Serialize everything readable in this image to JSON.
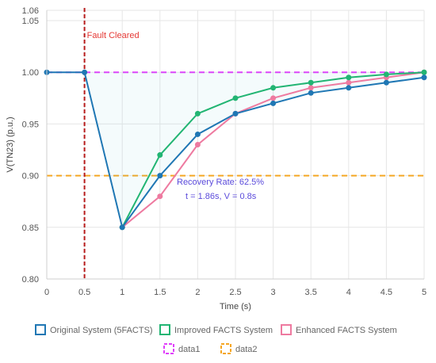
{
  "chart_data": {
    "type": "line",
    "xlabel": "Time (s)",
    "ylabel": "V(TN23) (p.u.)",
    "xlim": [
      0,
      5
    ],
    "ylim": [
      0.8,
      1.06
    ],
    "x_ticks": [
      "0",
      "0.5",
      "1",
      "1.5",
      "2",
      "2.5",
      "3",
      "3.5",
      "4",
      "4.5",
      "5"
    ],
    "y_ticks": [
      "0.80",
      "0.85",
      "0.90",
      "0.95",
      "1.00",
      "1.05",
      "1.06"
    ],
    "grid": true,
    "series": [
      {
        "name": "Original System (5FACTS)",
        "color": "#1f77b4",
        "x": [
          0,
          0.5,
          1,
          1.5,
          2,
          2.5,
          3,
          3.5,
          4,
          4.5,
          5
        ],
        "y": [
          1.0,
          1.0,
          0.85,
          0.9,
          0.94,
          0.96,
          0.97,
          0.98,
          0.985,
          0.99,
          0.995
        ]
      },
      {
        "name": "Improved FACTS System",
        "color": "#22b573",
        "x": [
          1,
          1.5,
          2,
          2.5,
          3,
          3.5,
          4,
          4.5,
          5
        ],
        "y": [
          0.85,
          0.92,
          0.96,
          0.975,
          0.985,
          0.99,
          0.995,
          0.998,
          1.0
        ]
      },
      {
        "name": "Enhanced FACTS System",
        "color": "#ee7aa0",
        "x": [
          1,
          1.5,
          2,
          2.5,
          3,
          3.5,
          4,
          4.5,
          5
        ],
        "y": [
          0.85,
          0.88,
          0.93,
          0.96,
          0.975,
          0.985,
          0.99,
          0.995,
          1.0
        ]
      }
    ],
    "reference_lines": [
      {
        "name": "data1",
        "orientation": "horizontal",
        "value": 1.0,
        "color": "#e040fb"
      },
      {
        "name": "data2",
        "orientation": "horizontal",
        "value": 0.9,
        "color": "#f5a623"
      },
      {
        "name": "fault",
        "orientation": "vertical",
        "value": 0.5,
        "color": "#b71c1c"
      }
    ],
    "annotations": {
      "fault_label": "Fault Cleared",
      "recovery_rate": "Recovery Rate: 62.5%",
      "recovery_detail": "t = 1.86s, V = 0.8s"
    },
    "legend_placement": "bottom",
    "legend_rows": [
      [
        "Original System (5FACTS)",
        "Improved FACTS System",
        "Enhanced FACTS System"
      ],
      [
        "data1",
        "data2"
      ]
    ]
  }
}
